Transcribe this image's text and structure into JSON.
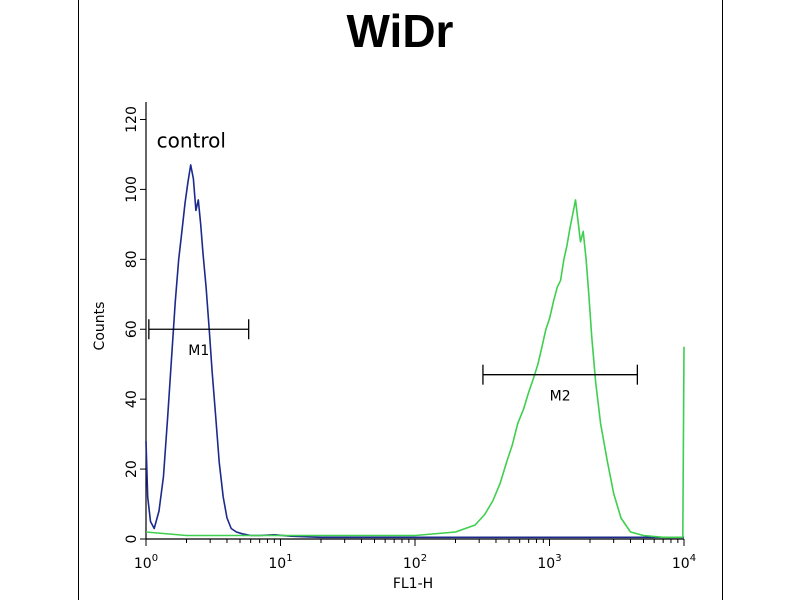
{
  "chart_data": {
    "type": "line",
    "title": "WiDr",
    "xlabel": "FL1-H",
    "ylabel": "Counts",
    "x_scale": "log",
    "xlim": [
      1,
      10000
    ],
    "ylim": [
      0,
      125
    ],
    "x_ticks": [
      {
        "value": 1,
        "base": "10",
        "exp": "0"
      },
      {
        "value": 10,
        "base": "10",
        "exp": "1"
      },
      {
        "value": 100,
        "base": "10",
        "exp": "2"
      },
      {
        "value": 1000,
        "base": "10",
        "exp": "3"
      },
      {
        "value": 10000,
        "base": "10",
        "exp": "4"
      }
    ],
    "y_ticks": [
      0,
      20,
      40,
      60,
      80,
      100,
      120
    ],
    "annotations": [
      {
        "name": "control-label",
        "text": "control",
        "x": 1.2,
        "y": 112
      },
      {
        "name": "marker-m1",
        "text": "M1",
        "x_start": 1.05,
        "x_end": 5.8,
        "y": 60
      },
      {
        "name": "marker-m2",
        "text": "M2",
        "x_start": 320,
        "x_end": 4500,
        "y": 47
      }
    ],
    "series": [
      {
        "color": "#1b2a8c",
        "x": [
          1,
          1.03,
          1.08,
          1.15,
          1.25,
          1.35,
          1.45,
          1.55,
          1.65,
          1.75,
          1.85,
          1.95,
          2.05,
          2.15,
          2.25,
          2.35,
          2.45,
          2.55,
          2.65,
          2.8,
          2.95,
          3.1,
          3.3,
          3.5,
          3.75,
          4.0,
          4.3,
          4.7,
          5.2,
          6,
          7,
          9,
          12,
          20,
          40,
          100,
          400,
          2000,
          10000
        ],
        "y": [
          28,
          12,
          5,
          3,
          8,
          18,
          35,
          52,
          68,
          80,
          88,
          96,
          102,
          107,
          103,
          94,
          97,
          90,
          82,
          72,
          60,
          48,
          35,
          22,
          12,
          6,
          3,
          2,
          1.5,
          1,
          1,
          1.2,
          0.8,
          0.5,
          0.5,
          0.5,
          0.5,
          0.5,
          0.5
        ]
      },
      {
        "color": "#3fcf4f",
        "x": [
          1,
          2,
          5,
          10,
          30,
          100,
          200,
          280,
          330,
          380,
          430,
          480,
          530,
          580,
          640,
          700,
          760,
          820,
          880,
          940,
          1000,
          1070,
          1140,
          1210,
          1280,
          1350,
          1420,
          1490,
          1560,
          1630,
          1700,
          1780,
          1870,
          1960,
          2060,
          2200,
          2400,
          2700,
          3000,
          3400,
          4000,
          5000,
          7000,
          9800,
          10000
        ],
        "y": [
          2,
          1,
          1,
          1,
          1,
          1,
          2,
          4,
          7,
          11,
          16,
          22,
          27,
          33,
          37,
          42,
          46,
          50,
          55,
          60,
          63,
          68,
          72,
          74,
          80,
          84,
          89,
          93,
          97,
          91,
          85,
          88,
          80,
          70,
          58,
          45,
          33,
          22,
          13,
          6,
          2,
          1,
          0.5,
          0.5,
          55
        ]
      }
    ]
  }
}
